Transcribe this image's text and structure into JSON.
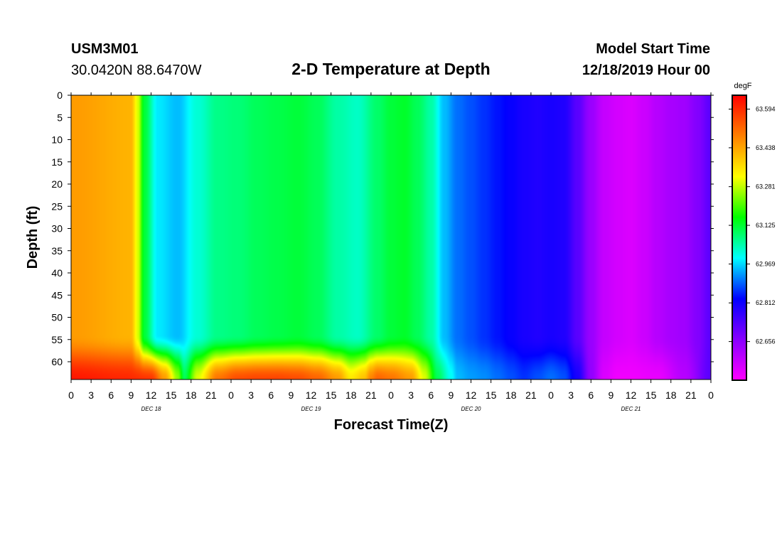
{
  "header": {
    "station": "USM3M01",
    "location": "30.0420N 88.6470W",
    "title": "2-D Temperature at Depth",
    "start_label": "Model Start Time",
    "start_value": "12/18/2019 Hour 00"
  },
  "chart_data": {
    "type": "heatmap",
    "title": "2-D Temperature at Depth",
    "xlabel": "Forecast Time(Z)",
    "ylabel": "Depth (ft)",
    "x_hours": [
      0,
      3,
      6,
      9,
      12,
      15,
      18,
      21,
      24,
      27,
      30,
      33,
      36,
      39,
      42,
      45,
      48,
      51,
      54,
      57,
      60,
      63,
      66,
      69,
      72,
      75,
      78,
      81,
      84,
      87,
      90,
      93,
      96
    ],
    "x_tick_labels": [
      "0",
      "3",
      "6",
      "9",
      "12",
      "15",
      "18",
      "21",
      "0",
      "3",
      "6",
      "9",
      "12",
      "15",
      "18",
      "21",
      "0",
      "3",
      "6",
      "9",
      "12",
      "15",
      "18",
      "21",
      "0",
      "3",
      "6",
      "9",
      "12",
      "15",
      "18",
      "21",
      "0"
    ],
    "day_labels": [
      {
        "label": "DEC 18",
        "hour": 12
      },
      {
        "label": "DEC 19",
        "hour": 36
      },
      {
        "label": "DEC 20",
        "hour": 60
      },
      {
        "label": "DEC 21",
        "hour": 84
      }
    ],
    "y_ticks": [
      0,
      5,
      10,
      15,
      20,
      25,
      30,
      35,
      40,
      45,
      50,
      55,
      60
    ],
    "y_range": [
      0,
      64
    ],
    "x_range": [
      0,
      96
    ],
    "colorbar": {
      "unit": "degF",
      "ticks": [
        "63.594",
        "63.438",
        "63.281",
        "63.125",
        "62.969",
        "62.812",
        "62.656"
      ],
      "tick_values": [
        63.594,
        63.438,
        63.281,
        63.125,
        62.969,
        62.812,
        62.656
      ],
      "range": [
        62.5,
        63.65
      ],
      "colors": [
        "#ff00ff",
        "#8800ff",
        "#0000ff",
        "#00ffff",
        "#00ff00",
        "#ffff00",
        "#ff8000",
        "#ff0000"
      ]
    },
    "surface_profile": {
      "hours": [
        0,
        9,
        10,
        11,
        13,
        16,
        19,
        22,
        25,
        28,
        31,
        34,
        37,
        40,
        43,
        46,
        48,
        50,
        52,
        54,
        56,
        58,
        60,
        62,
        64,
        66,
        68,
        70,
        72,
        74,
        76,
        78,
        80,
        82,
        84,
        86,
        88,
        90,
        92,
        94,
        96
      ],
      "temps": [
        63.45,
        63.42,
        63.3,
        63.12,
        62.98,
        62.95,
        63.02,
        63.07,
        63.08,
        63.1,
        63.11,
        63.12,
        63.1,
        63.05,
        63.03,
        63.09,
        63.12,
        63.13,
        63.1,
        63.05,
        62.95,
        62.9,
        62.88,
        62.86,
        62.84,
        62.82,
        62.8,
        62.79,
        62.8,
        62.79,
        62.72,
        62.64,
        62.58,
        62.56,
        62.55,
        62.57,
        62.6,
        62.62,
        62.63,
        62.67,
        62.72
      ]
    },
    "bottom_profile": {
      "hours": [
        0,
        8,
        12,
        14,
        16,
        17,
        19,
        22,
        25,
        28,
        31,
        34,
        37,
        40,
        42,
        44,
        45,
        46,
        48,
        51,
        53,
        55,
        57,
        58,
        60,
        62,
        64,
        66,
        68,
        70,
        72,
        74,
        76,
        78,
        80,
        82,
        84,
        88,
        92,
        96
      ],
      "temps": [
        63.62,
        63.6,
        63.58,
        63.45,
        63.25,
        63.1,
        63.3,
        63.5,
        63.55,
        63.56,
        63.56,
        63.55,
        63.52,
        63.45,
        63.35,
        63.4,
        63.48,
        63.52,
        63.5,
        63.45,
        63.3,
        63.1,
        63.0,
        62.95,
        62.93,
        62.92,
        62.9,
        62.88,
        62.86,
        62.88,
        62.9,
        62.88,
        62.8,
        62.65,
        62.55,
        62.52,
        62.52,
        62.53,
        62.6,
        62.72
      ]
    },
    "bottom_layer_depth": [
      54,
      64
    ]
  }
}
